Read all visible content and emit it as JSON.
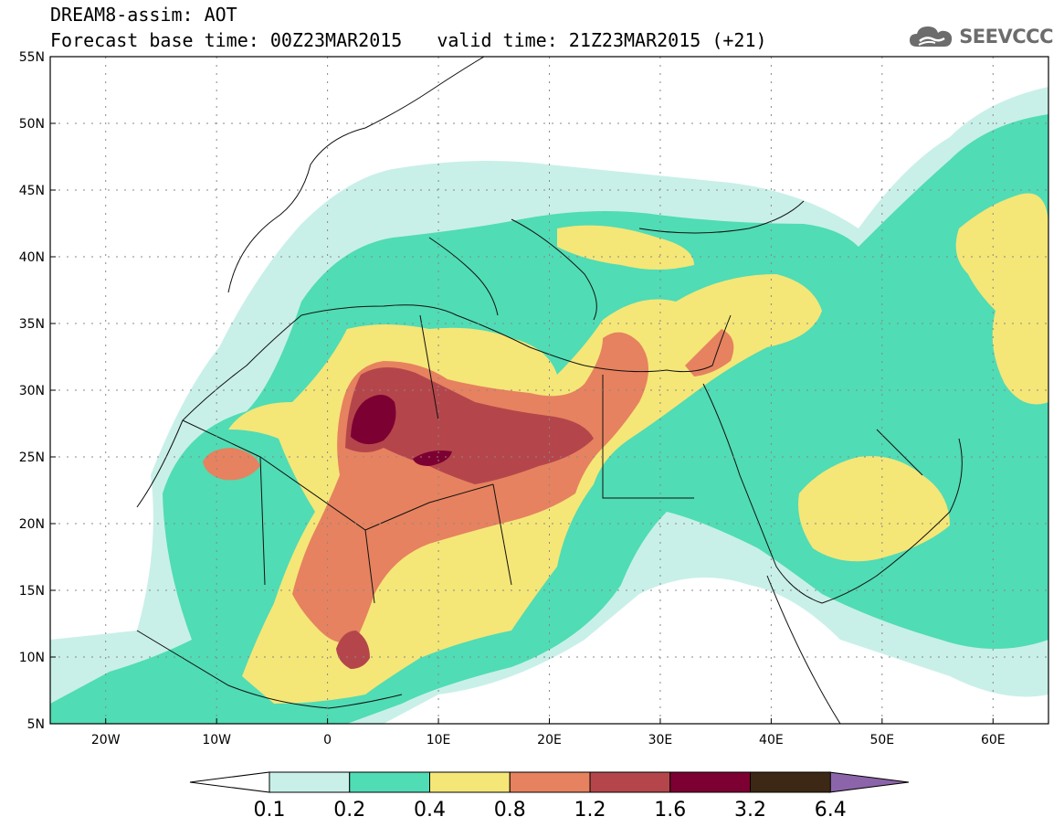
{
  "header": {
    "title": "DREAM8-assim: AOT",
    "base_time": "Forecast base time: 00Z23MAR2015",
    "valid_time": "valid time: 21Z23MAR2015 (+21)"
  },
  "logo": {
    "text": "SEEVCCC",
    "icon": "cloud-icon"
  },
  "map": {
    "lat_labels": [
      "55N",
      "50N",
      "45N",
      "40N",
      "35N",
      "30N",
      "25N",
      "20N",
      "15N",
      "10N",
      "5N"
    ],
    "lon_labels": [
      "20W",
      "10W",
      "0",
      "10E",
      "20E",
      "30E",
      "40E",
      "50E",
      "60E"
    ],
    "lon_range": [
      -25,
      65
    ],
    "lat_range": [
      5,
      55
    ]
  },
  "colorbar": {
    "labels": [
      "0.1",
      "0.2",
      "0.4",
      "0.8",
      "1.2",
      "1.6",
      "3.2",
      "6.4"
    ],
    "colors": [
      "#c8f0e8",
      "#50dcb4",
      "#f5e678",
      "#e6825f",
      "#b4464b",
      "#7d0032",
      "#3c2814",
      "#8c64aa"
    ]
  }
}
